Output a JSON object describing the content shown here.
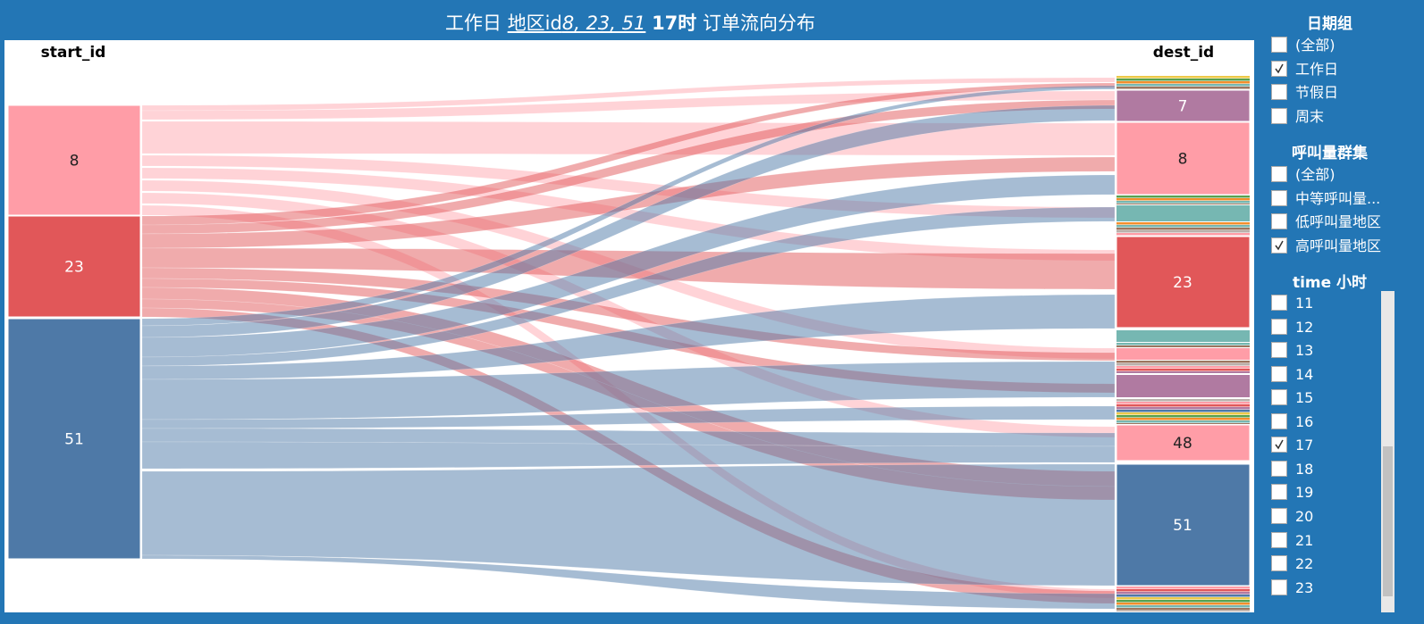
{
  "title": {
    "prefix": "工作日",
    "link": "地区id",
    "ids": "8, 23, 51",
    "hour": "17时",
    "suffix": "订单流向分布"
  },
  "sankey": {
    "left_header": "start_id",
    "right_header": "dest_id",
    "left_nodes": [
      "8",
      "23",
      "51"
    ],
    "right_nodes": [
      "7",
      "8",
      "23",
      "48",
      "51"
    ]
  },
  "filters": [
    {
      "title": "日期组",
      "options": [
        {
          "label": "(全部)",
          "checked": false
        },
        {
          "label": "工作日",
          "checked": true
        },
        {
          "label": "节假日",
          "checked": false
        },
        {
          "label": "周末",
          "checked": false
        }
      ]
    },
    {
      "title": "呼叫量群集",
      "options": [
        {
          "label": "(全部)",
          "checked": false
        },
        {
          "label": "中等呼叫量...",
          "checked": false
        },
        {
          "label": "低呼叫量地区",
          "checked": false
        },
        {
          "label": "高呼叫量地区",
          "checked": true
        }
      ]
    },
    {
      "title": "time 小时",
      "options": [
        {
          "label": "11",
          "checked": false
        },
        {
          "label": "12",
          "checked": false
        },
        {
          "label": "13",
          "checked": false
        },
        {
          "label": "14",
          "checked": false
        },
        {
          "label": "15",
          "checked": false
        },
        {
          "label": "16",
          "checked": false
        },
        {
          "label": "17",
          "checked": true
        },
        {
          "label": "18",
          "checked": false
        },
        {
          "label": "19",
          "checked": false
        },
        {
          "label": "20",
          "checked": false
        },
        {
          "label": "21",
          "checked": false
        },
        {
          "label": "22",
          "checked": false
        },
        {
          "label": "23",
          "checked": false
        }
      ]
    }
  ]
}
